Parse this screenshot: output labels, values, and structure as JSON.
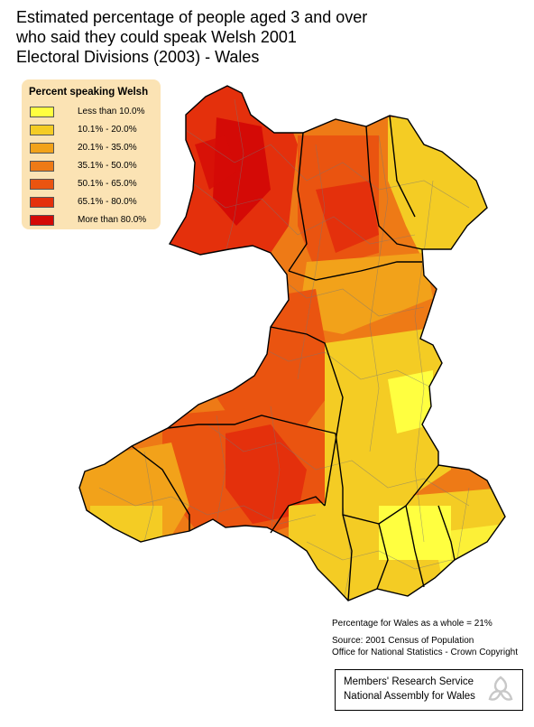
{
  "title": {
    "line1": "Estimated percentage of people aged 3 and over",
    "line2": "who said they could speak Welsh 2001",
    "line3": "Electoral Divisions (2003) - Wales"
  },
  "legend": {
    "title": "Percent speaking Welsh",
    "items": [
      {
        "label": "Less than 10.0%",
        "color": "#ffff40"
      },
      {
        "label": "10.1% - 20.0%",
        "color": "#f4cc24"
      },
      {
        "label": "20.1% - 35.0%",
        "color": "#f2a21a"
      },
      {
        "label": "35.1% - 50.0%",
        "color": "#ee7a16"
      },
      {
        "label": "50.1% - 65.0%",
        "color": "#ea5410"
      },
      {
        "label": "65.1% - 80.0%",
        "color": "#e4300c"
      },
      {
        "label": "More than 80.0%",
        "color": "#d40a06"
      }
    ]
  },
  "notes": {
    "whole": "Percentage for Wales as a whole = 21%",
    "source": "Source: 2001 Census of Population",
    "office": "Office for National Statistics - Crown Copyright"
  },
  "credit": {
    "line1": "Members' Research Service",
    "line2": "National Assembly for Wales"
  },
  "map": {
    "region": "Wales",
    "boundary_color": "#000000",
    "division_color": "#777777"
  }
}
